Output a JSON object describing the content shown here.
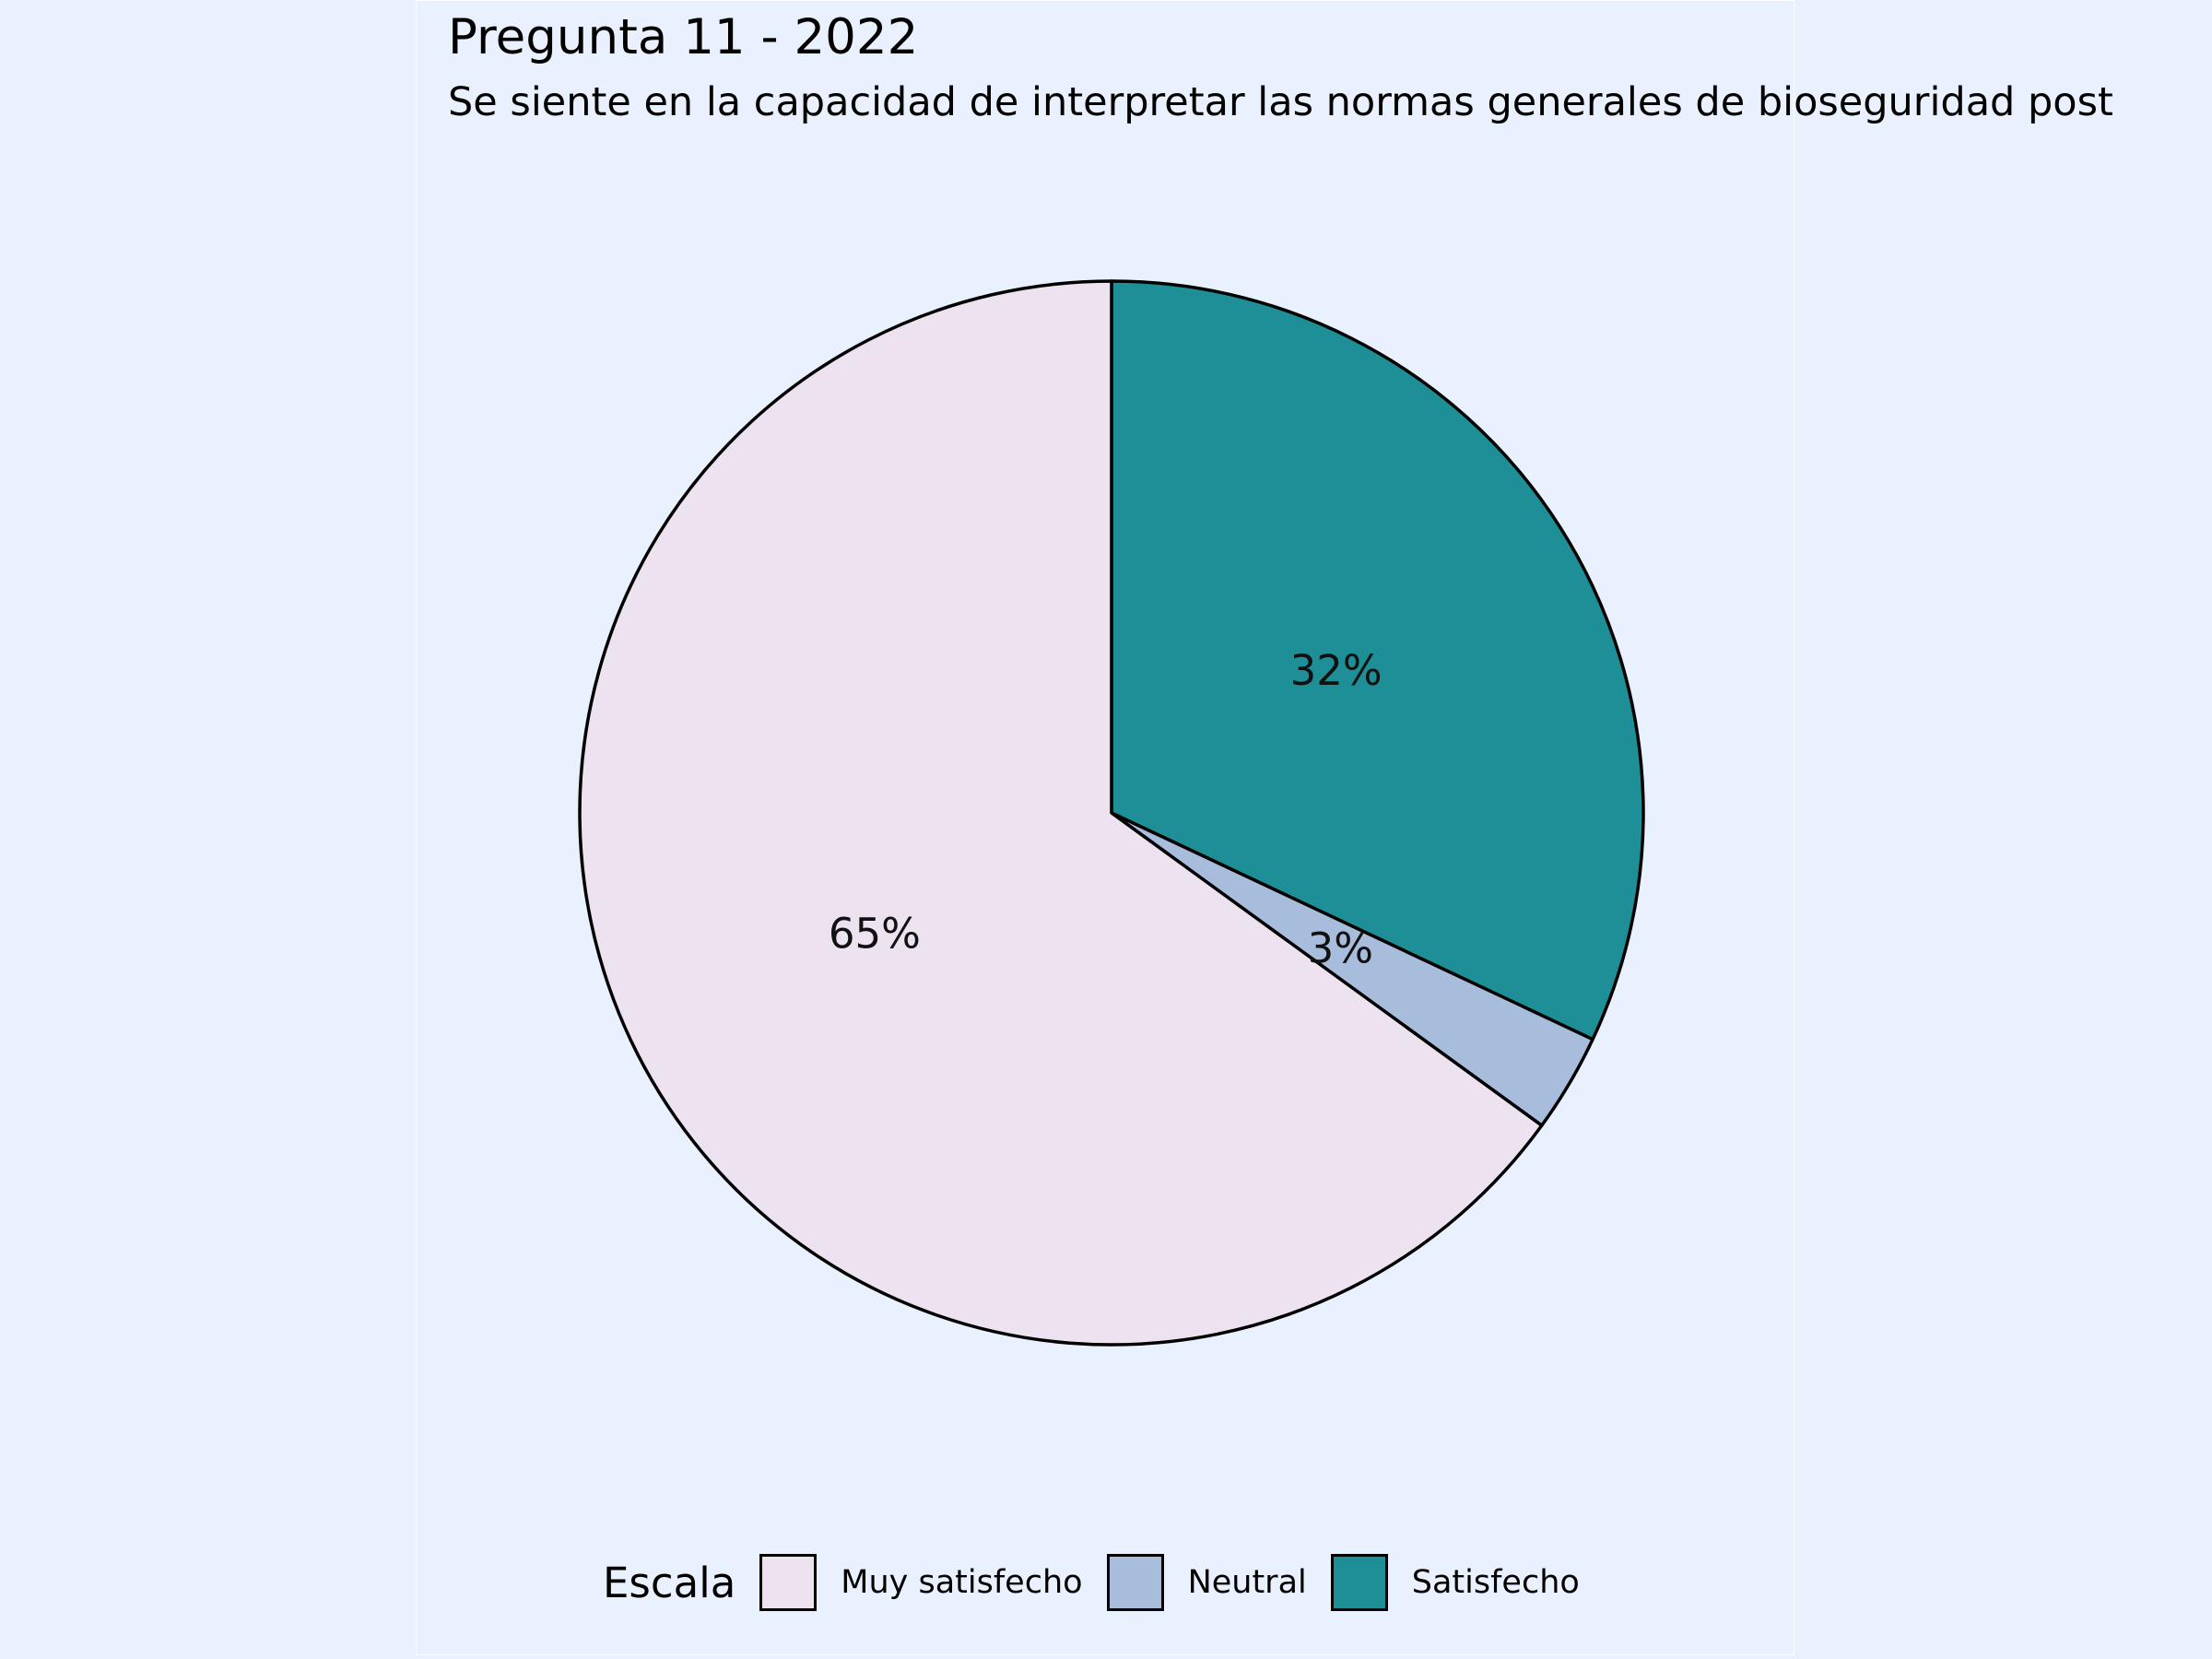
{
  "chart_data": {
    "type": "pie",
    "title": "Pregunta 11 - 2022",
    "subtitle": "Se siente en la capacidad de interpretar las normas generales de bioseguridad post",
    "legend_title": "Escala",
    "legend_position": "bottom",
    "slices": [
      {
        "name": "Satisfecho",
        "value": 32,
        "label": "32%",
        "color": "#1e8f96"
      },
      {
        "name": "Neutral",
        "value": 3,
        "label": "3%",
        "color": "#a8bcdc"
      },
      {
        "name": "Muy satisfecho",
        "value": 65,
        "label": "65%",
        "color": "#ede2ef"
      }
    ],
    "legend_items": [
      {
        "name": "Muy satisfecho",
        "color": "#ede2ef"
      },
      {
        "name": "Neutral",
        "color": "#a8bcdc"
      },
      {
        "name": "Satisfecho",
        "color": "#1e8f96"
      }
    ],
    "start_angle": "12 o'clock",
    "direction": "clockwise"
  },
  "colors": {
    "background": "#eaf1fe",
    "outline": "#000000"
  }
}
